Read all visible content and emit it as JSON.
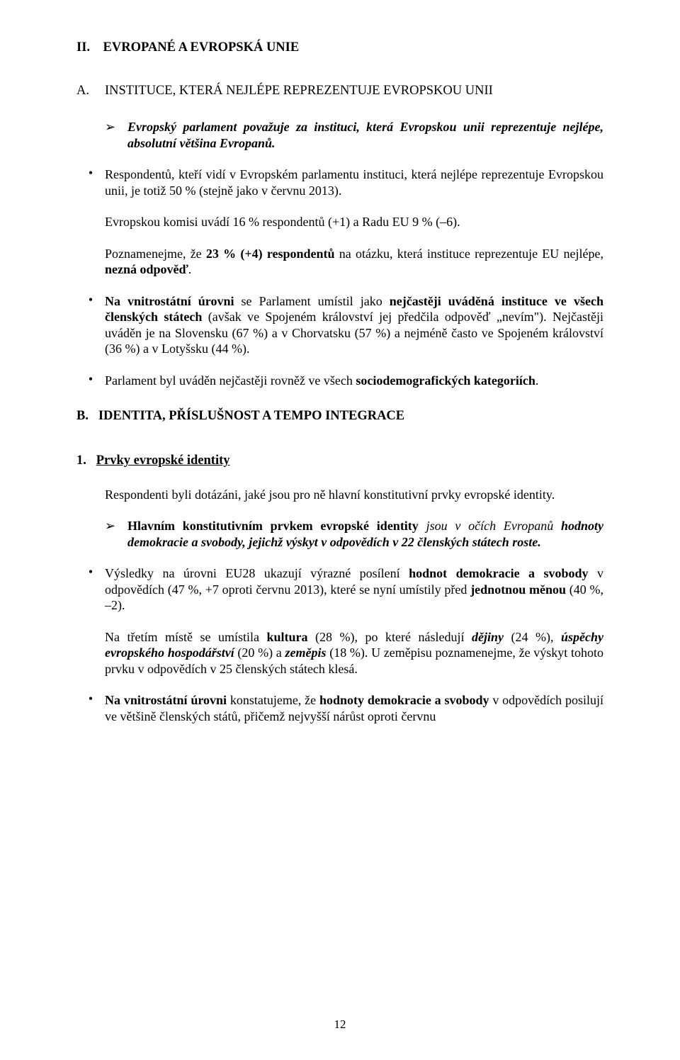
{
  "sectionII": {
    "number": "II.",
    "title": "EVROPANÉ A EVROPSKÁ UNIE"
  },
  "subA": {
    "number": "A.",
    "title": "INSTITUCE, KTERÁ NEJLÉPE REPREZENTUJE EVROPSKOU UNII"
  },
  "arrow1": {
    "text_italic_bold": "Evropský parlament považuje za instituci, která Evropskou unii reprezentuje nejlépe, absolutní většina Evropanů."
  },
  "bulletsA": [
    {
      "p1": "Respondentů, kteří vidí v Evropském parlamentu instituci, která nejlépe reprezentuje Evropskou unii, je totiž 50 % (stejně jako v červnu 2013).",
      "p2": "Evropskou komisi uvádí 16 % respondentů (+1) a Radu EU 9 % (–6).",
      "p3_pre": "Poznamenejme, že ",
      "p3_bold": "23 % (+4) respondentů",
      "p3_mid": " na otázku, která instituce reprezentuje EU nejlépe, ",
      "p3_bold2": "nezná odpověď",
      "p3_post": "."
    },
    {
      "b_pre_bold": "Na vnitrostátní úrovni",
      "b_text": " se Parlament umístil jako ",
      "b_bold2": "nejčastěji uváděná instituce ve všech členských státech",
      "b_text2": " (avšak ve Spojeném království jej předčila odpověď „nevím\"). Nejčastěji uváděn je na Slovensku (67 %) a v Chorvatsku (57 %) a nejméně často ve Spojeném království (36 %) a v Lotyšsku (44 %)."
    },
    {
      "c_pre": "Parlament byl uváděn nejčastěji rovněž ve všech ",
      "c_bold": "sociodemografických kategoriích",
      "c_post": "."
    }
  ],
  "subB": {
    "number": "B.",
    "title": "IDENTITA, PŘÍSLUŠNOST A TEMPO INTEGRACE"
  },
  "sub1": {
    "number": "1.",
    "title": "Prvky evropské identity"
  },
  "identPara": "Respondenti byli dotázáni, jaké jsou pro ně hlavní konstitutivní prvky evropské identity.",
  "arrow2": {
    "pre_bold": "Hlavním konstitutivním prvkem evropské identity ",
    "italic_part": "jsou v očích Evropanů ",
    "bold_italic": "hodnoty demokracie a svobody, jejichž výskyt v odpovědích v 22 členských státech roste."
  },
  "bulletsB": [
    {
      "p1_pre": "Výsledky na úrovni EU28 ukazují výrazné posílení ",
      "p1_bold1": "hodnot demokracie a svobody",
      "p1_mid": " v odpovědích (47 %, +7 oproti červnu 2013), které se nyní umístily před ",
      "p1_bold2": "jednotnou měnou",
      "p1_post": " (40 %, –2).",
      "p2_pre": "Na třetím místě se umístila ",
      "p2_b1": "kultura",
      "p2_t1": " (28 %), po které následují ",
      "p2_bi1": "dějiny",
      "p2_t2": " (24 %), ",
      "p2_bi2": "úspěchy evropského hospodářství",
      "p2_t3": " (20 %) a ",
      "p2_bi3": "zeměpis",
      "p2_t4": " (18 %). U zeměpisu poznamenejme, že výskyt tohoto prvku v odpovědích v 25 členských státech klesá."
    },
    {
      "b_bold1": "Na vnitrostátní úrovni",
      "b_t1": " konstatujeme, že ",
      "b_bold2": "hodnoty demokracie a svobody",
      "b_t2": " v odpovědích posilují ve většině členských států, přičemž nejvyšší nárůst oproti červnu"
    }
  ],
  "pageNumber": "12"
}
